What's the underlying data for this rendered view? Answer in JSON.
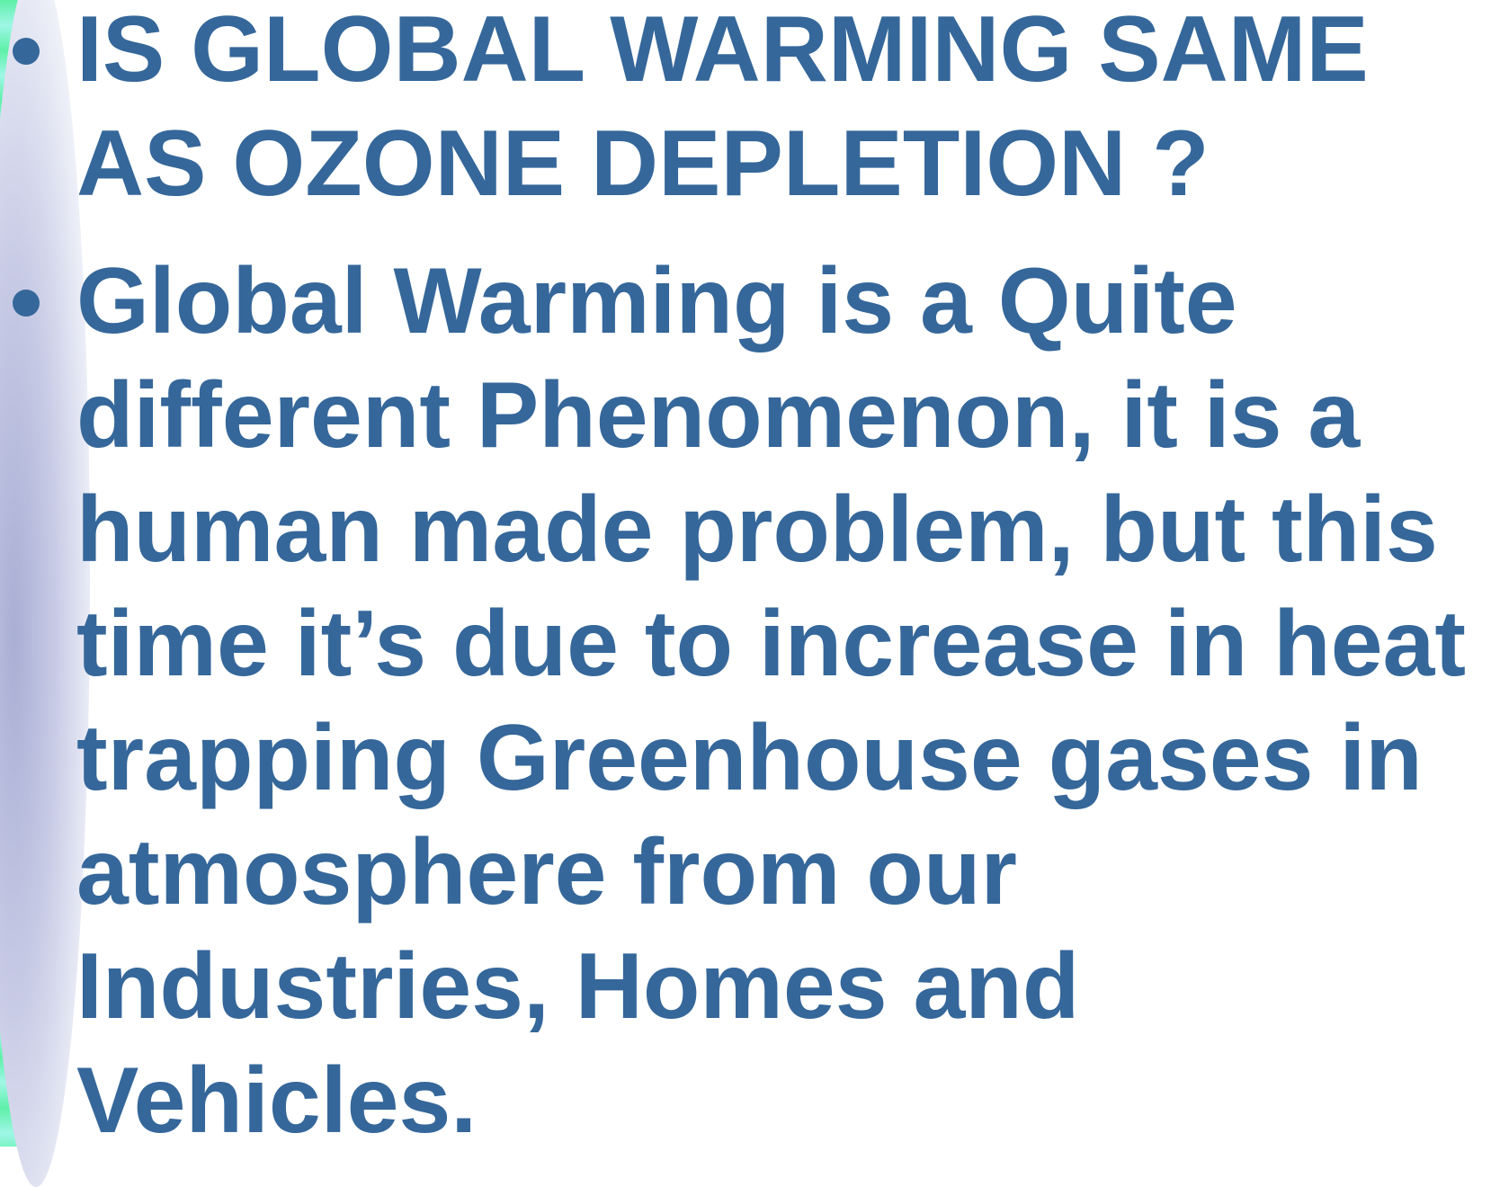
{
  "bullets": [
    "IS GLOBAL WARMING SAME AS OZONE DEPLETION ?",
    "Global Warming is a Quite different Phenomenon, it is a human made problem, but this time it’s due to increase in heat trapping Greenhouse gases in atmosphere from our Industries, Homes and Vehicles."
  ]
}
